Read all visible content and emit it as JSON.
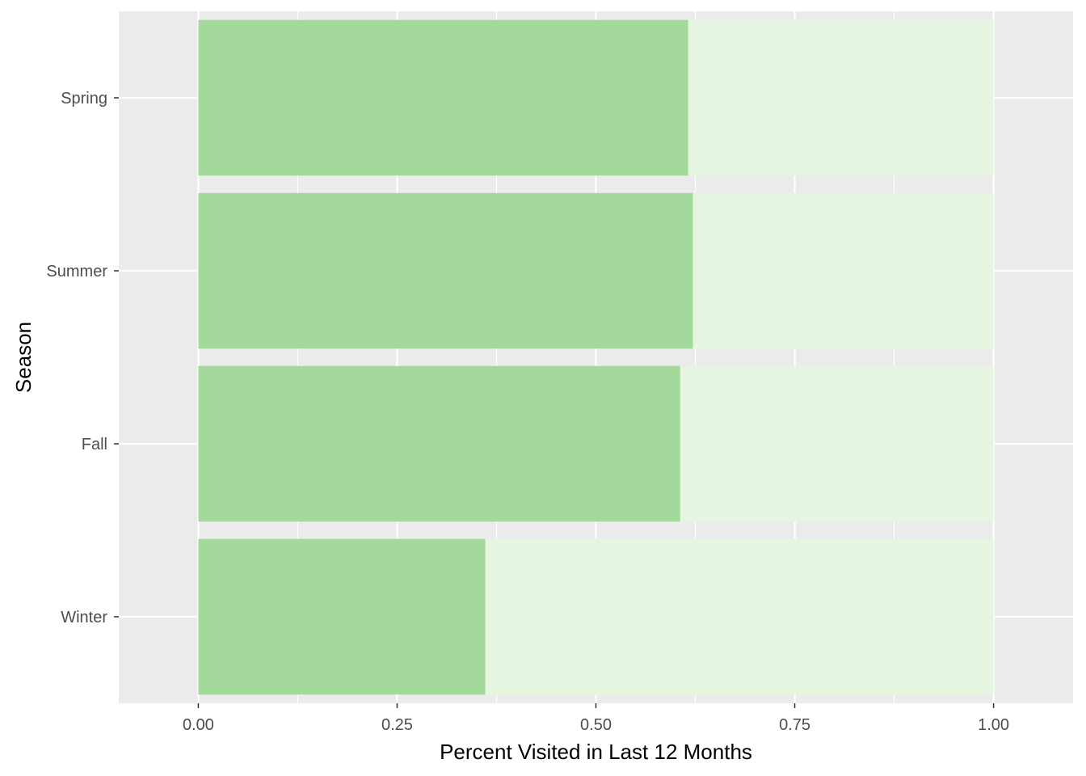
{
  "chart_data": {
    "type": "bar",
    "orientation": "horizontal",
    "stacked": true,
    "title": "",
    "xlabel": "Percent Visited in Last 12 Months",
    "ylabel": "Season",
    "xlim": [
      -0.1,
      1.1
    ],
    "x_ticks": [
      0.0,
      0.25,
      0.5,
      0.75,
      1.0
    ],
    "x_tick_labels": [
      "0.00",
      "0.25",
      "0.50",
      "0.75",
      "1.00"
    ],
    "categories": [
      "Spring",
      "Summer",
      "Fall",
      "Winter"
    ],
    "series": [
      {
        "values": [
          0.616,
          0.622,
          0.606,
          0.361
        ],
        "color": "#a3d99b"
      },
      {
        "values": [
          0.384,
          0.378,
          0.394,
          0.639
        ],
        "color": "#e5f5e0"
      }
    ],
    "grid": true,
    "legend": "none",
    "panel_background": "#ebebeb",
    "gridline_color": "#ffffff"
  }
}
